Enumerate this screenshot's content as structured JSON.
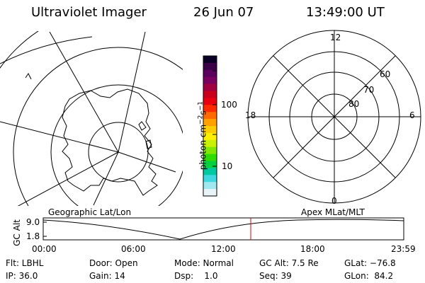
{
  "header": {
    "title": "Ultraviolet Imager",
    "date": "26 Jun 07",
    "time": "13:49:00 UT"
  },
  "colorbar": {
    "label_main": "photon cm",
    "label_exp1": "−2",
    "label_mid": "s",
    "label_exp2": "−1",
    "ticks": [
      "100",
      "10"
    ],
    "colors": [
      "#0a0026",
      "#3a0048",
      "#5c005e",
      "#7a0060",
      "#a00040",
      "#c8001c",
      "#e80010",
      "#ff2a00",
      "#ff6a00",
      "#ffa000",
      "#ffcc00",
      "#ffee00",
      "#c8f000",
      "#80e800",
      "#30dc00",
      "#00d040",
      "#00c8a0",
      "#40d8e0",
      "#a0e8f0",
      "#e8f4f8"
    ]
  },
  "left_panel": {
    "label": "Geographic Lat/Lon"
  },
  "right_panel": {
    "label": "Apex MLat/MLT",
    "mlt_labels": {
      "top": "12",
      "left": "18",
      "right": "6",
      "bottom": "0"
    },
    "lat_labels": [
      "60",
      "70",
      "80"
    ]
  },
  "timeline": {
    "axis_label": "GC Alt",
    "y_ticks": [
      "9.0",
      "1.8"
    ],
    "x_ticks": [
      "00:00",
      "06:00",
      "12:00",
      "18:00",
      "23:59"
    ],
    "marker_time": "13:49",
    "marker_color": "#e00000"
  },
  "info": {
    "flt": "Flt: LBHL",
    "ip": "IP: 36.0",
    "door": "Door: Open",
    "gain": "Gain: 14",
    "mode": "Mode: Normal",
    "dsp": "Dsp:    1.0",
    "gc_alt": "GC Alt: 7.5 Re",
    "seq": "Seq: 39",
    "glat": "GLat: −76.8",
    "glon": "GLon:  84.2"
  }
}
